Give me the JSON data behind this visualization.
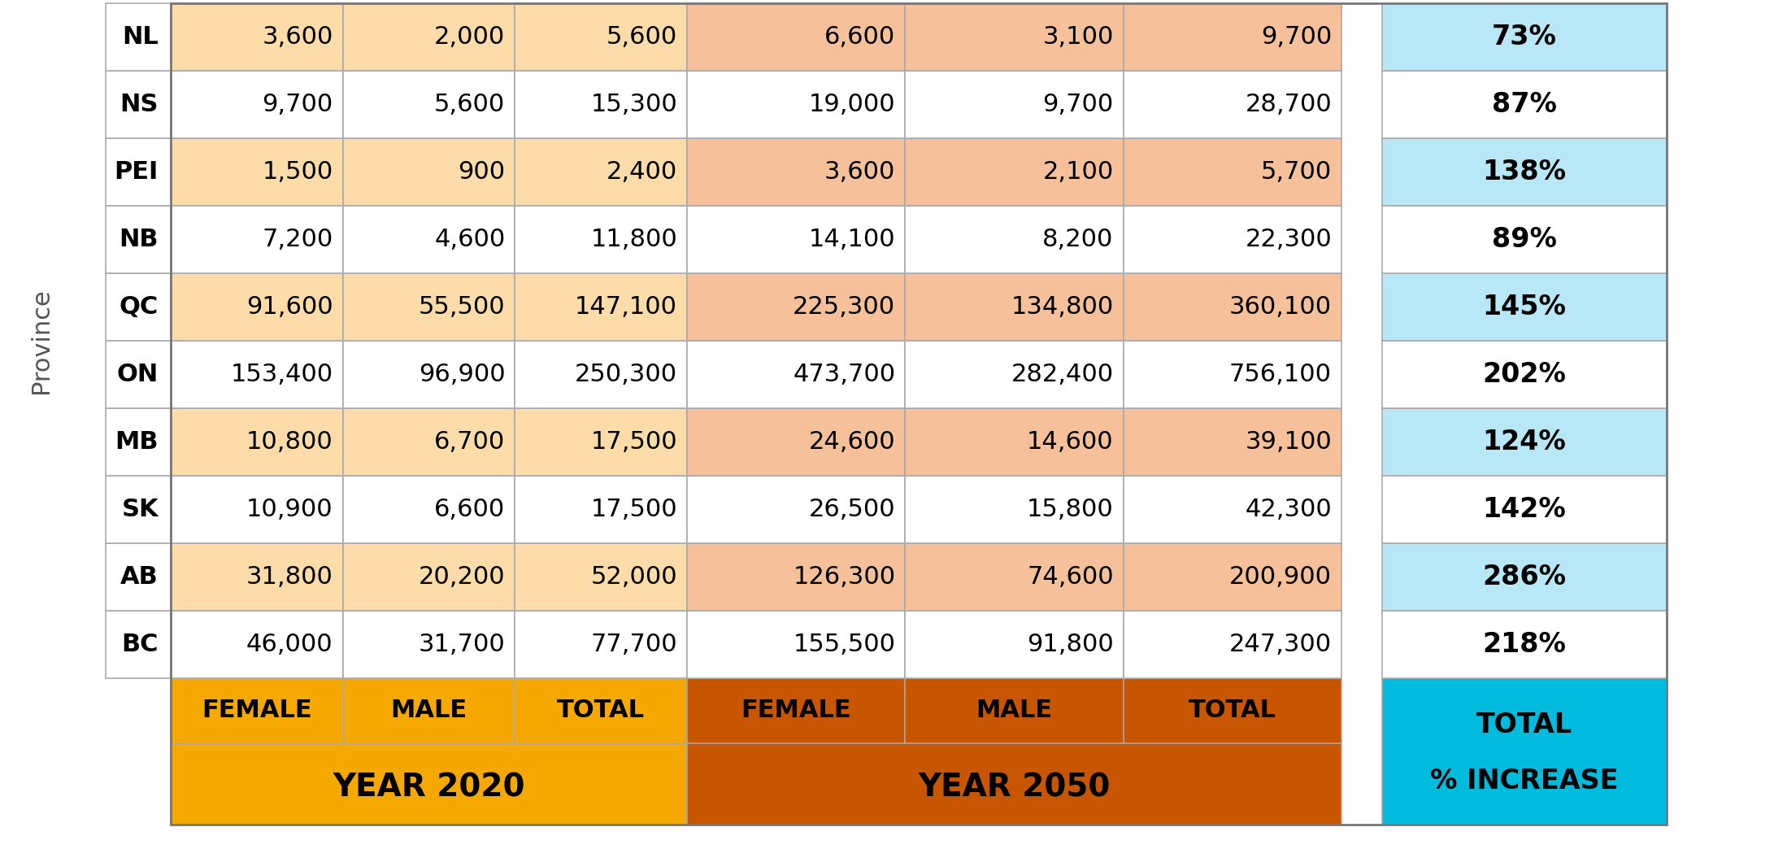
{
  "provinces": [
    "BC",
    "AB",
    "SK",
    "MB",
    "ON",
    "QC",
    "NB",
    "PEI",
    "NS",
    "NL"
  ],
  "year2020": {
    "female": [
      46000,
      31800,
      10900,
      10800,
      153400,
      91600,
      7200,
      1500,
      9700,
      3600
    ],
    "male": [
      31700,
      20200,
      6600,
      6700,
      96900,
      55500,
      4600,
      900,
      5600,
      2000
    ],
    "total": [
      77700,
      52000,
      17500,
      17500,
      250300,
      147100,
      11800,
      2400,
      15300,
      5600
    ]
  },
  "year2050": {
    "female": [
      155500,
      126300,
      26500,
      24600,
      473700,
      225300,
      14100,
      3600,
      19000,
      6600
    ],
    "male": [
      91800,
      74600,
      15800,
      14600,
      282400,
      134800,
      8200,
      2100,
      9700,
      3100
    ],
    "total": [
      247300,
      200900,
      42300,
      39100,
      756100,
      360100,
      22300,
      5700,
      28700,
      9700
    ]
  },
  "pct_increase": [
    "218%",
    "286%",
    "142%",
    "124%",
    "202%",
    "145%",
    "89%",
    "138%",
    "87%",
    "73%"
  ],
  "header_2020_color": "#F5A800",
  "header_2050_color": "#C85500",
  "header_pct_color": "#00BBDD",
  "row_bg_2020_odd": "#FDDCAA",
  "row_bg_2020_even": "#FDDCAA",
  "row_bg_2050_odd": "#F5C09A",
  "row_bg_2050_even": "#F5C09A",
  "row_bg_pct_white": "#FFFFFF",
  "row_bg_pct_blue": "#B8E8F8",
  "row_bg_prov_white": "#FFFFFF",
  "row_bg_2020_alt": "#F0C882",
  "row_bg_2050_alt": "#E8A878",
  "border_color": "#AAAAAA",
  "text_black": "#000000",
  "text_white": "#FFFFFF",
  "text_gray": "#555555"
}
